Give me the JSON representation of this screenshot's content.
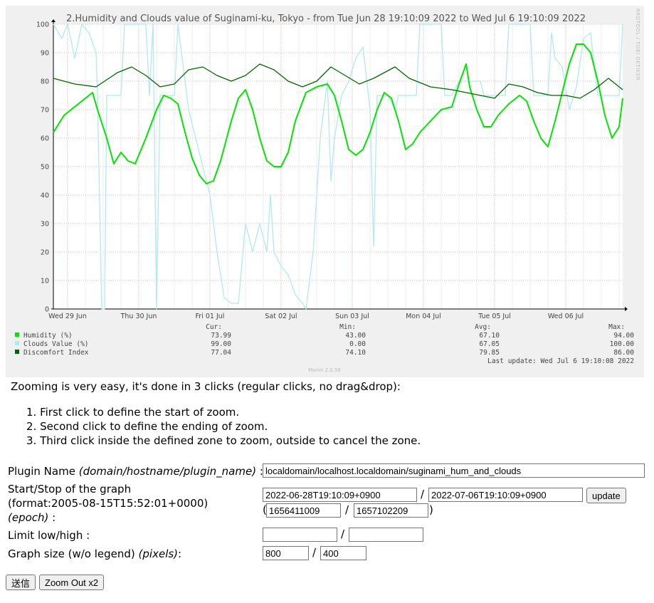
{
  "graph": {
    "title": "2.Humidity and Clouds value of Suginami-ku, Tokyo - from Tue Jun 28 19:10:09 2022 to Wed Jul  6 19:10:09 2022",
    "watermark": "RRDTOOL / TOBI OETIKER",
    "x_labels": [
      "Wed 29 Jun",
      "Thu 30 Jun",
      "Fri 01 Jul",
      "Sat 02 Jul",
      "Sun 03 Jul",
      "Mon 04 Jul",
      "Tue 05 Jul",
      "Wed 06 Jul"
    ],
    "y_labels": [
      "0",
      "10",
      "20",
      "30",
      "40",
      "50",
      "60",
      "70",
      "80",
      "90",
      "100"
    ],
    "legend_headers": {
      "cur": "Cur:",
      "min": "Min:",
      "avg": "Avg:",
      "max": "Max:"
    },
    "legend": [
      {
        "label": "Humidity (%)",
        "color": "#00e600",
        "cur": "73.99",
        "min": "43.00",
        "avg": "67.10",
        "max": "94.00"
      },
      {
        "label": "Clouds Value (%)",
        "color": "#aeeaf0",
        "cur": "99.00",
        "min": "0.00",
        "avg": "67.05",
        "max": "100.00"
      },
      {
        "label": "Discomfort Index",
        "color": "#006600",
        "cur": "77.04",
        "min": "74.10",
        "avg": "79.85",
        "max": "86.00"
      }
    ],
    "last_update": "Last update: Wed Jul  6 19:10:08 2022",
    "version": "Munin 2.0.56"
  },
  "chart_data": {
    "type": "line",
    "title": "2.Humidity and Clouds value of Suginami-ku, Tokyo - from Tue Jun 28 19:10:09 2022 to Wed Jul  6 19:10:09 2022",
    "x_range": [
      "2022-06-28T19:10:09+0900",
      "2022-07-06T19:10:09+0900"
    ],
    "x_unit": "days since start",
    "ylim": [
      0,
      100
    ],
    "grid": true,
    "series": [
      {
        "name": "Humidity (%)",
        "color": "#00e600",
        "points": [
          [
            0,
            62
          ],
          [
            0.15,
            68
          ],
          [
            0.3,
            71
          ],
          [
            0.45,
            74
          ],
          [
            0.55,
            76
          ],
          [
            0.62,
            70
          ],
          [
            0.75,
            60
          ],
          [
            0.85,
            51
          ],
          [
            0.95,
            55
          ],
          [
            1.05,
            52
          ],
          [
            1.15,
            51
          ],
          [
            1.3,
            60
          ],
          [
            1.45,
            70
          ],
          [
            1.55,
            75
          ],
          [
            1.65,
            74
          ],
          [
            1.75,
            72
          ],
          [
            1.85,
            62
          ],
          [
            1.95,
            53
          ],
          [
            2.05,
            47
          ],
          [
            2.15,
            44
          ],
          [
            2.25,
            45
          ],
          [
            2.35,
            52
          ],
          [
            2.5,
            66
          ],
          [
            2.6,
            74
          ],
          [
            2.7,
            77
          ],
          [
            2.8,
            70
          ],
          [
            2.9,
            60
          ],
          [
            3.0,
            52
          ],
          [
            3.1,
            50
          ],
          [
            3.2,
            50
          ],
          [
            3.3,
            55
          ],
          [
            3.4,
            66
          ],
          [
            3.55,
            76
          ],
          [
            3.7,
            78
          ],
          [
            3.85,
            79
          ],
          [
            3.95,
            75
          ],
          [
            4.05,
            66
          ],
          [
            4.15,
            56
          ],
          [
            4.25,
            54
          ],
          [
            4.35,
            56
          ],
          [
            4.45,
            62
          ],
          [
            4.55,
            70
          ],
          [
            4.65,
            76
          ],
          [
            4.75,
            74
          ],
          [
            4.85,
            66
          ],
          [
            4.95,
            56
          ],
          [
            5.05,
            58
          ],
          [
            5.15,
            62
          ],
          [
            5.3,
            66
          ],
          [
            5.45,
            70
          ],
          [
            5.6,
            71
          ],
          [
            5.7,
            79
          ],
          [
            5.8,
            86
          ],
          [
            5.85,
            78
          ],
          [
            5.95,
            70
          ],
          [
            6.05,
            64
          ],
          [
            6.15,
            64
          ],
          [
            6.25,
            68
          ],
          [
            6.4,
            72
          ],
          [
            6.55,
            75
          ],
          [
            6.65,
            73
          ],
          [
            6.75,
            66
          ],
          [
            6.85,
            60
          ],
          [
            6.95,
            57
          ],
          [
            7.05,
            66
          ],
          [
            7.15,
            76
          ],
          [
            7.25,
            86
          ],
          [
            7.35,
            93
          ],
          [
            7.45,
            93
          ],
          [
            7.55,
            90
          ],
          [
            7.65,
            80
          ],
          [
            7.75,
            68
          ],
          [
            7.85,
            60
          ],
          [
            7.95,
            64
          ],
          [
            8.0,
            74
          ]
        ]
      },
      {
        "name": "Clouds Value (%)",
        "color": "#aeeaf0",
        "points": [
          [
            0,
            100
          ],
          [
            0.12,
            95
          ],
          [
            0.2,
            100
          ],
          [
            0.3,
            88
          ],
          [
            0.4,
            100
          ],
          [
            0.5,
            97
          ],
          [
            0.6,
            90
          ],
          [
            0.62,
            75
          ],
          [
            0.68,
            0
          ],
          [
            0.72,
            0
          ],
          [
            0.75,
            75
          ],
          [
            0.95,
            75
          ],
          [
            1.0,
            100
          ],
          [
            1.3,
            100
          ],
          [
            1.35,
            75
          ],
          [
            1.4,
            100
          ],
          [
            1.45,
            0
          ],
          [
            1.5,
            75
          ],
          [
            1.7,
            75
          ],
          [
            1.75,
            100
          ],
          [
            1.8,
            90
          ],
          [
            1.9,
            70
          ],
          [
            2.0,
            60
          ],
          [
            2.1,
            50
          ],
          [
            2.2,
            40
          ],
          [
            2.3,
            20
          ],
          [
            2.4,
            4
          ],
          [
            2.5,
            2
          ],
          [
            2.6,
            2
          ],
          [
            2.7,
            30
          ],
          [
            2.8,
            20
          ],
          [
            2.9,
            30
          ],
          [
            3.0,
            20
          ],
          [
            3.05,
            40
          ],
          [
            3.1,
            20
          ],
          [
            3.2,
            15
          ],
          [
            3.3,
            12
          ],
          [
            3.4,
            5
          ],
          [
            3.5,
            2
          ],
          [
            3.55,
            0
          ],
          [
            3.65,
            20
          ],
          [
            3.75,
            60
          ],
          [
            3.85,
            80
          ],
          [
            3.9,
            45
          ],
          [
            3.95,
            60
          ],
          [
            4.05,
            75
          ],
          [
            4.15,
            80
          ],
          [
            4.25,
            88
          ],
          [
            4.35,
            92
          ],
          [
            4.45,
            70
          ],
          [
            4.5,
            22
          ],
          [
            4.55,
            75
          ],
          [
            4.7,
            75
          ],
          [
            4.8,
            70
          ],
          [
            4.85,
            75
          ],
          [
            5.1,
            75
          ],
          [
            5.15,
            100
          ],
          [
            5.45,
            100
          ],
          [
            5.5,
            75
          ],
          [
            5.6,
            75
          ],
          [
            5.7,
            80
          ],
          [
            6.0,
            80
          ],
          [
            6.05,
            75
          ],
          [
            6.35,
            75
          ],
          [
            6.4,
            100
          ],
          [
            6.7,
            100
          ],
          [
            6.75,
            75
          ],
          [
            6.95,
            75
          ],
          [
            7.0,
            97
          ],
          [
            7.05,
            88
          ],
          [
            7.15,
            85
          ],
          [
            7.25,
            70
          ],
          [
            7.35,
            78
          ],
          [
            7.45,
            95
          ],
          [
            7.55,
            97
          ],
          [
            7.6,
            85
          ],
          [
            7.65,
            75
          ],
          [
            7.95,
            75
          ],
          [
            8.0,
            100
          ]
        ]
      },
      {
        "name": "Discomfort Index",
        "color": "#006600",
        "points": [
          [
            0,
            81
          ],
          [
            0.3,
            79
          ],
          [
            0.6,
            78
          ],
          [
            0.9,
            83
          ],
          [
            1.1,
            85
          ],
          [
            1.3,
            82
          ],
          [
            1.5,
            78
          ],
          [
            1.7,
            79
          ],
          [
            1.9,
            84
          ],
          [
            2.1,
            85
          ],
          [
            2.3,
            82
          ],
          [
            2.5,
            80
          ],
          [
            2.7,
            82
          ],
          [
            2.9,
            86
          ],
          [
            3.1,
            84
          ],
          [
            3.3,
            80
          ],
          [
            3.5,
            78
          ],
          [
            3.7,
            80
          ],
          [
            3.9,
            85
          ],
          [
            4.1,
            82
          ],
          [
            4.3,
            79
          ],
          [
            4.5,
            81
          ],
          [
            4.8,
            85
          ],
          [
            5.0,
            81
          ],
          [
            5.3,
            78
          ],
          [
            5.6,
            77
          ],
          [
            5.8,
            76
          ],
          [
            6.0,
            75
          ],
          [
            6.2,
            74
          ],
          [
            6.4,
            79
          ],
          [
            6.6,
            78
          ],
          [
            6.8,
            76
          ],
          [
            7.0,
            75
          ],
          [
            7.2,
            75
          ],
          [
            7.4,
            74
          ],
          [
            7.6,
            77
          ],
          [
            7.8,
            81
          ],
          [
            8.0,
            77
          ]
        ]
      }
    ]
  },
  "instructions": {
    "intro": "Zooming is very easy, it's done in 3 clicks (regular clicks, no drag&drop):",
    "steps": [
      "1. First click to define the start of zoom.",
      "2. Second click to define the ending of zoom.",
      "3. Third click inside the defined zone to zoom, outside to cancel the zone."
    ]
  },
  "form": {
    "plugin_label": "Plugin Name ",
    "plugin_label_em": "(domain/hostname/plugin_name)",
    "plugin_label_tail": " :",
    "plugin_value": "localdomain/localhost.localdomain/suginami_hum_and_clouds",
    "startstop_label": "Start/Stop of the graph",
    "startstop_format": "(format:2005-08-15T15:52:01+0000)",
    "startstop_epoch": "(epoch)",
    "startstop_tail": " :",
    "start_value": "2022-06-28T19:10:09+0900",
    "stop_value": "2022-07-06T19:10:09+0900",
    "start_epoch": "1656411009",
    "stop_epoch": "1657102209",
    "update_label": "update",
    "limit_label": "Limit low/high :",
    "limit_low": "",
    "limit_high": "",
    "size_label": "Graph size (w/o legend) ",
    "size_label_em": "(pixels)",
    "size_label_tail": ":",
    "width_value": "800",
    "height_value": "400",
    "slash": "/",
    "open_paren": "(",
    "close_paren": ")",
    "submit_label": "送信",
    "zoomout_label": "Zoom Out x2"
  }
}
